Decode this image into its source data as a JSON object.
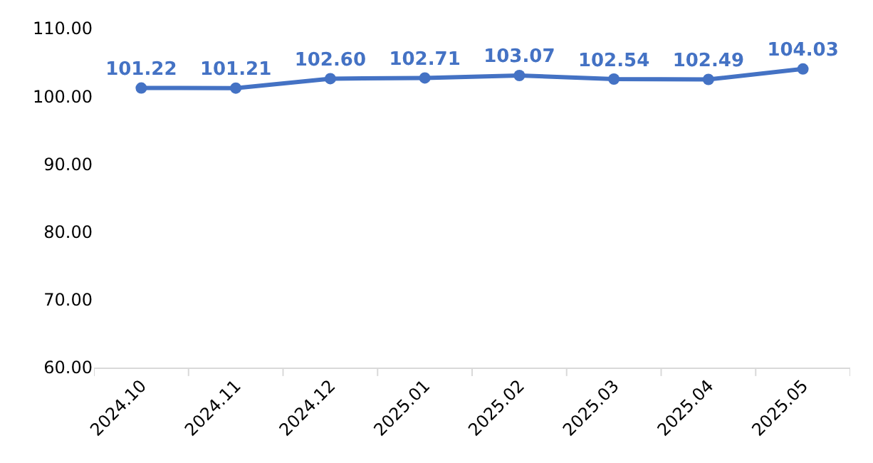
{
  "chart_data": {
    "type": "line",
    "categories": [
      "2024.10",
      "2024.11",
      "2024.12",
      "2025.01",
      "2025.02",
      "2025.03",
      "2025.04",
      "2025.05"
    ],
    "series": [
      {
        "color": "#4472c4",
        "values": [
          101.22,
          101.21,
          102.6,
          102.71,
          103.07,
          102.54,
          102.49,
          104.03
        ],
        "value_labels": [
          "101.22",
          "101.21",
          "102.60",
          "102.71",
          "103.07",
          "102.54",
          "102.49",
          "104.03"
        ]
      }
    ],
    "ylim": [
      60,
      110
    ],
    "yticks": [
      {
        "value": 60,
        "label": "60.00"
      },
      {
        "value": 70,
        "label": "70.00"
      },
      {
        "value": 80,
        "label": "80.00"
      },
      {
        "value": 90,
        "label": "90.00"
      },
      {
        "value": 100,
        "label": "100.00"
      },
      {
        "value": 110,
        "label": "110.00"
      }
    ],
    "grid": false,
    "legend": false,
    "marker": "circle",
    "line_style": "solid"
  }
}
